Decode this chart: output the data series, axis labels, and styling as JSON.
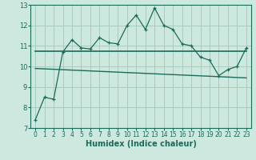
{
  "xlabel": "Humidex (Indice chaleur)",
  "bg_color": "#cce8df",
  "grid_color": "#a8ccbf",
  "line_color": "#1a6b5a",
  "xlim": [
    -0.5,
    23.5
  ],
  "ylim": [
    7,
    13
  ],
  "yticks": [
    7,
    8,
    9,
    10,
    11,
    12,
    13
  ],
  "xticks": [
    0,
    1,
    2,
    3,
    4,
    5,
    6,
    7,
    8,
    9,
    10,
    11,
    12,
    13,
    14,
    15,
    16,
    17,
    18,
    19,
    20,
    21,
    22,
    23
  ],
  "main_line": [
    7.4,
    8.5,
    8.4,
    10.7,
    11.3,
    10.9,
    10.85,
    11.4,
    11.15,
    11.1,
    12.0,
    12.5,
    11.8,
    12.85,
    12.0,
    11.8,
    11.1,
    11.0,
    10.45,
    10.3,
    9.55,
    9.85,
    10.0,
    10.9
  ],
  "upper_line": [
    10.75,
    10.75,
    10.75,
    10.75,
    10.75,
    10.75,
    10.75,
    10.75,
    10.75,
    10.75,
    10.75,
    10.75,
    10.75,
    10.75,
    10.75,
    10.75,
    10.75,
    10.75,
    10.75,
    10.75,
    10.75,
    10.75,
    10.75,
    10.75
  ],
  "lower_line": [
    9.9,
    9.88,
    9.86,
    9.84,
    9.82,
    9.8,
    9.78,
    9.76,
    9.74,
    9.72,
    9.7,
    9.68,
    9.66,
    9.64,
    9.62,
    9.6,
    9.58,
    9.56,
    9.54,
    9.52,
    9.5,
    9.48,
    9.46,
    9.44
  ]
}
